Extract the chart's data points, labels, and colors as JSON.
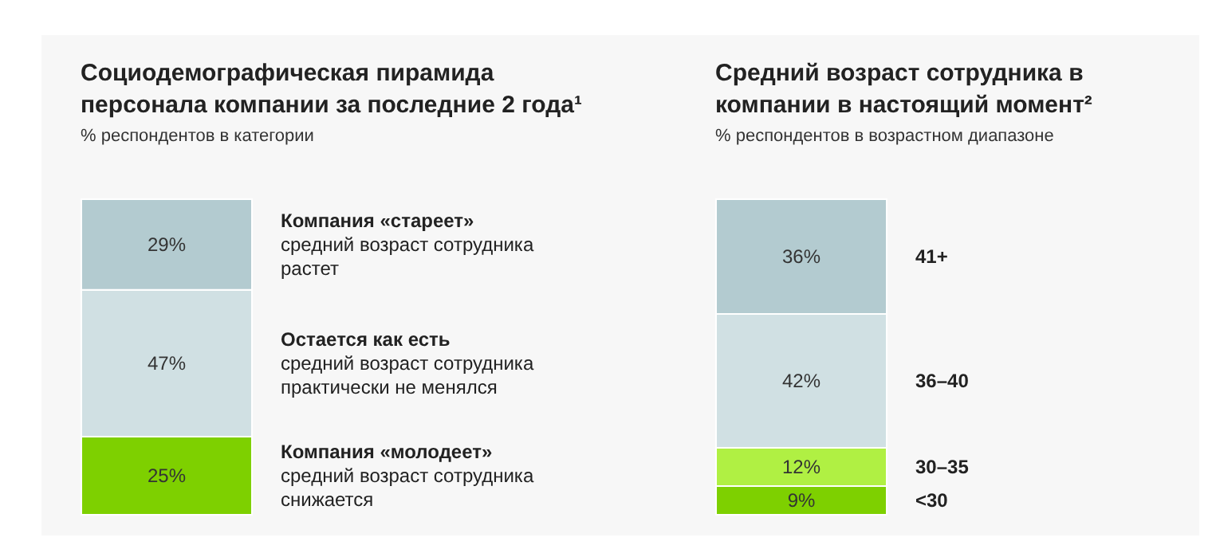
{
  "chart_data": [
    {
      "type": "bar",
      "title": "Социодемографическая пирамида персонала компании за последние 2 года¹",
      "subtitle": "% респондентов в категории",
      "categories": [
        null
      ],
      "stacked": true,
      "series": [
        {
          "name": "Компания «молодеет»",
          "color": "#7ed000",
          "values": [
            25
          ],
          "value_labels": [
            "25%"
          ]
        },
        {
          "name": "Остается как есть",
          "color": "#d0e0e3",
          "values": [
            47
          ],
          "value_labels": [
            "47%"
          ]
        },
        {
          "name": "Компания «стареет»",
          "color": "#b3cbd0",
          "values": [
            29
          ],
          "value_labels": [
            "29%"
          ]
        }
      ],
      "annotations": [
        "средний возраст сотрудника снижается",
        "средний возраст сотрудника практически не менялся",
        "средний возраст сотрудника растет"
      ]
    },
    {
      "type": "bar",
      "title": "Средний возраст сотрудника в компании в настоящий момент²",
      "subtitle": "% респондентов в возрастном диапазоне",
      "categories": [
        null
      ],
      "stacked": true,
      "series": [
        {
          "name": "<30",
          "color": "#7ed000",
          "values": [
            9
          ],
          "value_labels": [
            "9%"
          ]
        },
        {
          "name": "30–35",
          "color": "#b0f043",
          "values": [
            12
          ],
          "value_labels": [
            "12%"
          ]
        },
        {
          "name": "36–40",
          "color": "#d0e0e3",
          "values": [
            42
          ],
          "value_labels": [
            "42%"
          ]
        },
        {
          "name": "41+",
          "color": "#b3cbd0",
          "values": [
            36
          ],
          "value_labels": [
            "36%"
          ]
        }
      ]
    }
  ]
}
